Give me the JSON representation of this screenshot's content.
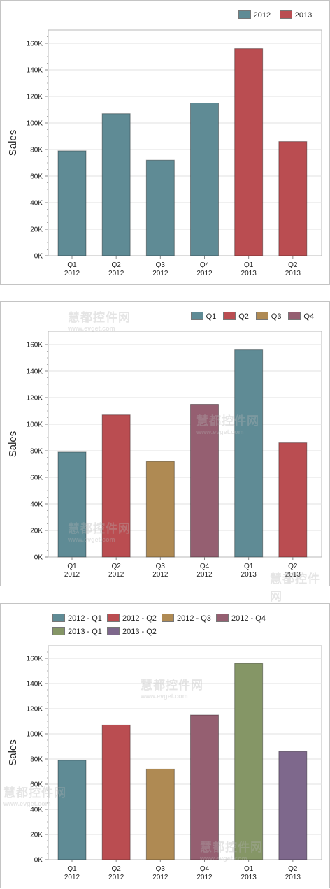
{
  "watermark": {
    "cn": "慧都控件网",
    "url": "www.evget.com"
  },
  "chart_data": [
    {
      "type": "bar",
      "categories": [
        [
          "Q1",
          "2012"
        ],
        [
          "Q2",
          "2012"
        ],
        [
          "Q3",
          "2012"
        ],
        [
          "Q4",
          "2012"
        ],
        [
          "Q1",
          "2013"
        ],
        [
          "Q2",
          "2013"
        ]
      ],
      "values": [
        79000,
        107000,
        72000,
        115000,
        156000,
        86000
      ],
      "ylabel": "Sales",
      "ylim": [
        0,
        170000
      ],
      "yticks": [
        "0K",
        "20K",
        "40K",
        "60K",
        "80K",
        "100K",
        "120K",
        "140K",
        "160K"
      ],
      "legend": [
        {
          "name": "2012",
          "color": "#5f8b95"
        },
        {
          "name": "2013",
          "color": "#ba4d51"
        }
      ],
      "bar_colors": [
        "#5f8b95",
        "#5f8b95",
        "#5f8b95",
        "#5f8b95",
        "#ba4d51",
        "#ba4d51"
      ],
      "legend_placement": "top-right",
      "grid": true
    },
    {
      "type": "bar",
      "categories": [
        [
          "Q1",
          "2012"
        ],
        [
          "Q2",
          "2012"
        ],
        [
          "Q3",
          "2012"
        ],
        [
          "Q4",
          "2012"
        ],
        [
          "Q1",
          "2013"
        ],
        [
          "Q2",
          "2013"
        ]
      ],
      "values": [
        79000,
        107000,
        72000,
        115000,
        156000,
        86000
      ],
      "ylabel": "Sales",
      "ylim": [
        0,
        170000
      ],
      "yticks": [
        "0K",
        "20K",
        "40K",
        "60K",
        "80K",
        "100K",
        "120K",
        "140K",
        "160K"
      ],
      "legend": [
        {
          "name": "Q1",
          "color": "#5f8b95"
        },
        {
          "name": "Q2",
          "color": "#ba4d51"
        },
        {
          "name": "Q3",
          "color": "#af8a53"
        },
        {
          "name": "Q4",
          "color": "#955f71"
        }
      ],
      "bar_colors": [
        "#5f8b95",
        "#ba4d51",
        "#af8a53",
        "#955f71",
        "#5f8b95",
        "#ba4d51"
      ],
      "legend_placement": "top-right",
      "grid": true
    },
    {
      "type": "bar",
      "categories": [
        [
          "Q1",
          "2012"
        ],
        [
          "Q2",
          "2012"
        ],
        [
          "Q3",
          "2012"
        ],
        [
          "Q4",
          "2012"
        ],
        [
          "Q1",
          "2013"
        ],
        [
          "Q2",
          "2013"
        ]
      ],
      "values": [
        79000,
        107000,
        72000,
        115000,
        156000,
        86000
      ],
      "ylabel": "Sales",
      "ylim": [
        0,
        170000
      ],
      "yticks": [
        "0K",
        "20K",
        "40K",
        "60K",
        "80K",
        "100K",
        "120K",
        "140K",
        "160K"
      ],
      "legend": [
        {
          "name": "2012 - Q1",
          "color": "#5f8b95"
        },
        {
          "name": "2012 - Q2",
          "color": "#ba4d51"
        },
        {
          "name": "2012 - Q3",
          "color": "#af8a53"
        },
        {
          "name": "2012 - Q4",
          "color": "#955f71"
        },
        {
          "name": "2013 - Q1",
          "color": "#859666"
        },
        {
          "name": "2013 - Q2",
          "color": "#7e688c"
        }
      ],
      "bar_colors": [
        "#5f8b95",
        "#ba4d51",
        "#af8a53",
        "#955f71",
        "#859666",
        "#7e688c"
      ],
      "legend_placement": "top",
      "grid": true
    }
  ]
}
